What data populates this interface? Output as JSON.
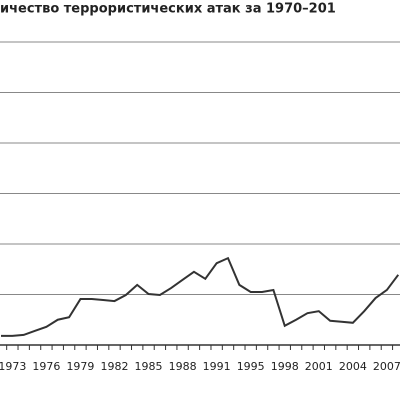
{
  "chart_data": {
    "type": "line",
    "title": "ичество террористических атак за 1970–201",
    "categories": [
      null,
      "1973",
      null,
      null,
      "1976",
      null,
      null,
      "1979",
      null,
      null,
      "1982",
      null,
      null,
      "1985",
      null,
      null,
      "1988",
      null,
      null,
      "1991",
      null,
      null,
      "1995",
      null,
      null,
      "1998",
      null,
      null,
      "2001",
      null,
      null,
      "2004",
      null,
      null,
      "2007",
      null
    ],
    "values": [
      0.18,
      0.18,
      0.2,
      0.28,
      0.36,
      0.5,
      0.55,
      0.91,
      0.91,
      0.89,
      0.87,
      0.99,
      1.19,
      1.01,
      0.99,
      1.13,
      1.29,
      1.45,
      1.31,
      1.62,
      1.72,
      1.19,
      1.05,
      1.05,
      1.09,
      0.38,
      0.5,
      0.63,
      0.67,
      0.48,
      0.46,
      0.44,
      0.67,
      0.93,
      1.09,
      1.39
    ],
    "color": "#333333",
    "ylim": [
      0,
      6
    ],
    "yticks": [
      0,
      1,
      2,
      3,
      4,
      5,
      6
    ],
    "grid": true
  }
}
